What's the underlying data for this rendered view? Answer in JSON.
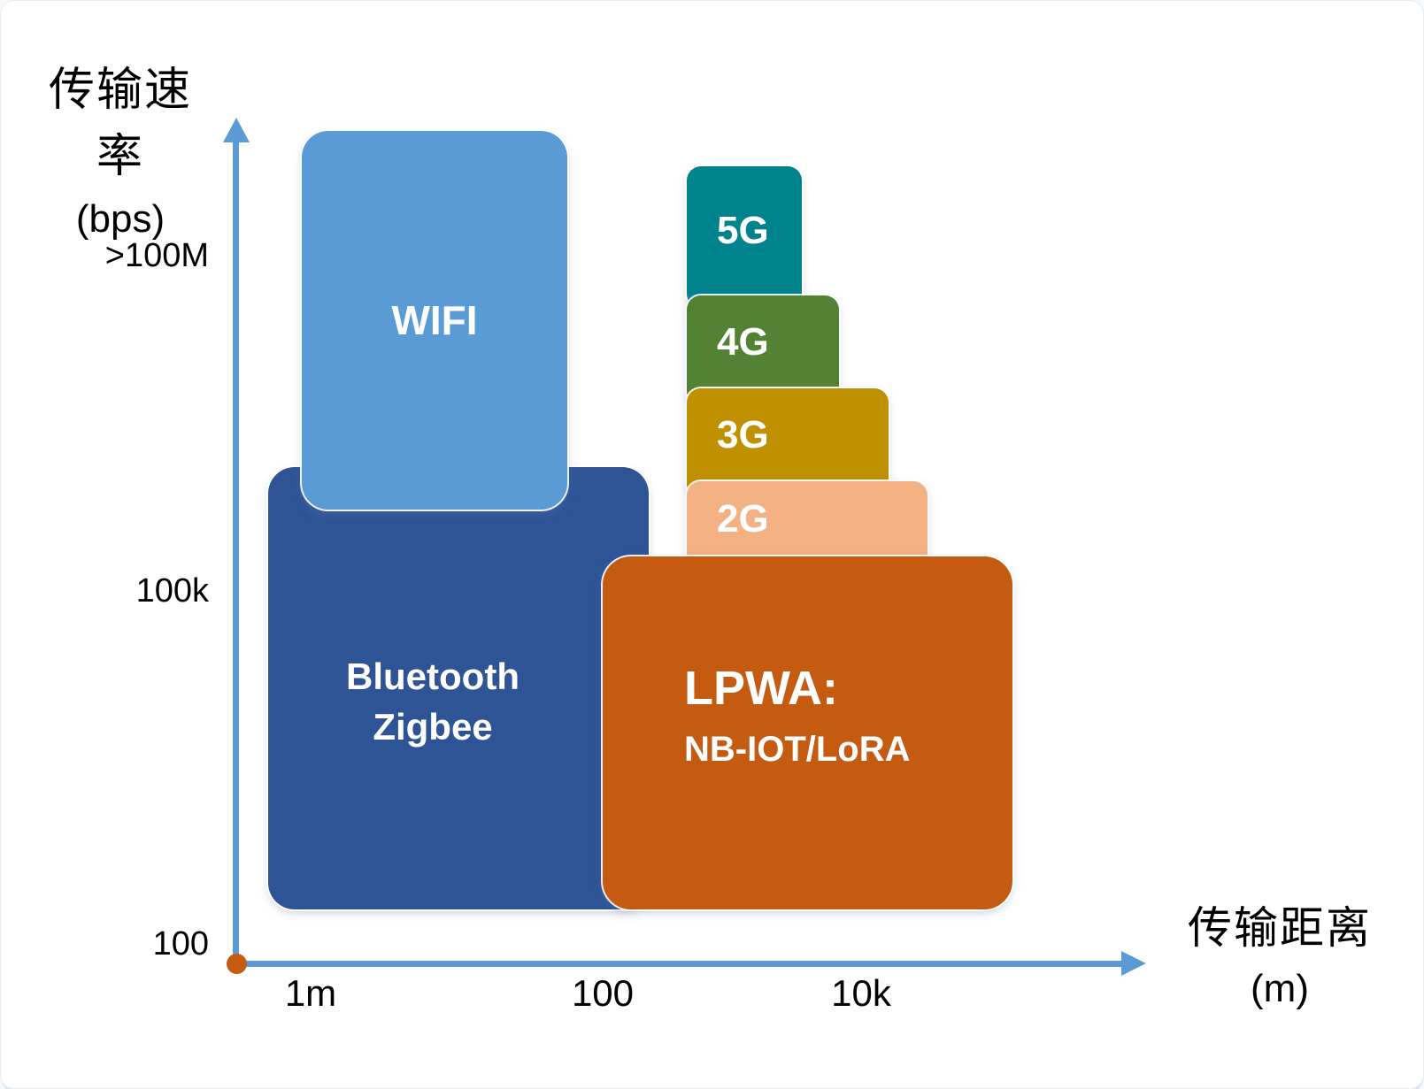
{
  "y_axis": {
    "title_line1": "传输速率",
    "title_line2": "(bps)",
    "ticks": [
      ">100M",
      "100k",
      "100"
    ]
  },
  "x_axis": {
    "title_line1": "传输距离",
    "title_line2": "(m)",
    "ticks": [
      "1m",
      "100",
      "10k"
    ]
  },
  "nodes": {
    "wifi": {
      "label": "WIFI",
      "color": "#5B9BD5"
    },
    "bluetooth": {
      "line1": "Bluetooth",
      "line2": "Zigbee",
      "color": "#2F5496"
    },
    "g5": {
      "label": "5G",
      "color": "#00838C"
    },
    "g4": {
      "label": "4G",
      "color": "#548235"
    },
    "g3": {
      "label": "3G",
      "color": "#BF9000"
    },
    "g2": {
      "label": "2G",
      "color": "#F4B183"
    },
    "lpwa": {
      "line1": "LPWA:",
      "line2": "NB-IOT/LoRA",
      "color": "#C55A11"
    }
  },
  "colors": {
    "axis": "#5B9BD5",
    "origin_dot": "#C55A11",
    "text": "#000000",
    "box_label": "#FFFFFF"
  },
  "chart_data": {
    "type": "scatter",
    "title": "",
    "xlabel": "传输距离 (m)",
    "ylabel": "传输速率 (bps)",
    "x_scale": "log",
    "y_scale": "log",
    "x_ticks": [
      "1m",
      "100",
      "10k"
    ],
    "y_ticks": [
      ">100M",
      "100k",
      "100"
    ],
    "grid": false,
    "legend": false,
    "regions": [
      {
        "label": "WIFI",
        "distance_m": [
          "~1",
          "~100"
        ],
        "rate_bps": [
          "~500k",
          ">100M"
        ],
        "color": "#5B9BD5"
      },
      {
        "label": "Bluetooth Zigbee",
        "distance_m": [
          "<1",
          "~200"
        ],
        "rate_bps": [
          "~100",
          "~1M"
        ],
        "color": "#2F5496"
      },
      {
        "label": "5G",
        "distance_m": [
          "~500",
          "~3k"
        ],
        "rate_bps": [
          ">100M",
          "highest"
        ],
        "color": "#00838C"
      },
      {
        "label": "4G",
        "distance_m": [
          "~500",
          "~6k"
        ],
        "rate_bps": [
          "~50M",
          "~100M"
        ],
        "color": "#548235"
      },
      {
        "label": "3G",
        "distance_m": [
          "~500",
          "~15k"
        ],
        "rate_bps": [
          "~10M",
          "~50M"
        ],
        "color": "#BF9000"
      },
      {
        "label": "2G",
        "distance_m": [
          "~500",
          "~30k"
        ],
        "rate_bps": [
          "~1M",
          "~10M"
        ],
        "color": "#F4B183"
      },
      {
        "label": "LPWA: NB-IOT/LoRA",
        "distance_m": [
          "~100",
          ">10k"
        ],
        "rate_bps": [
          "~100",
          "~300k"
        ],
        "color": "#C55A11"
      }
    ]
  }
}
